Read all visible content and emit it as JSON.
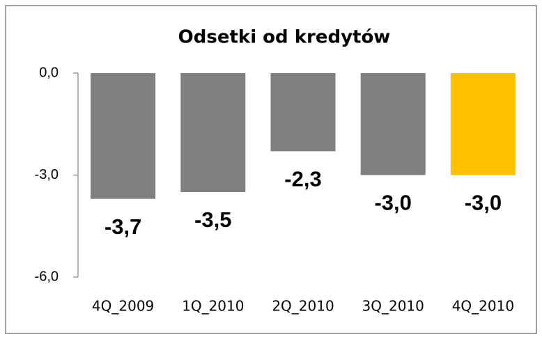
{
  "chart_data": {
    "type": "bar",
    "title": "Odsetki od kredytów",
    "categories": [
      "4Q_2009",
      "1Q_2010",
      "2Q_2010",
      "3Q_2010",
      "4Q_2010"
    ],
    "values": [
      -3.7,
      -3.5,
      -2.3,
      -3.0,
      -3.0
    ],
    "value_labels": [
      "-3,7",
      "-3,5",
      "-2,3",
      "-3,0",
      "-3,0"
    ],
    "colors": [
      "#808080",
      "#808080",
      "#808080",
      "#808080",
      "#ffc000"
    ],
    "ylim": [
      -6,
      0
    ],
    "yticks": [
      {
        "value": 0,
        "label": "0,0"
      },
      {
        "value": -3,
        "label": "-3,0"
      },
      {
        "value": -6,
        "label": "-6,0"
      }
    ],
    "grid": false
  }
}
